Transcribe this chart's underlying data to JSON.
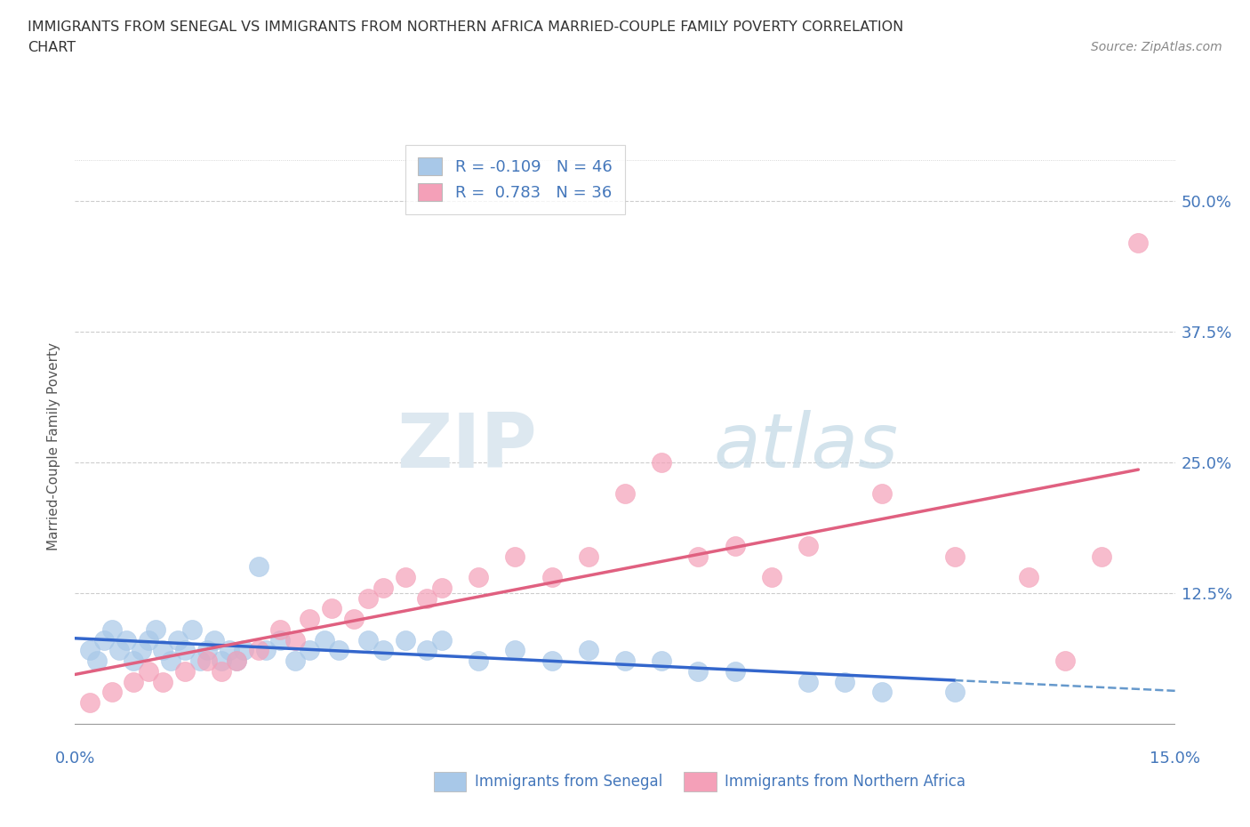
{
  "title_line1": "IMMIGRANTS FROM SENEGAL VS IMMIGRANTS FROM NORTHERN AFRICA MARRIED-COUPLE FAMILY POVERTY CORRELATION",
  "title_line2": "CHART",
  "source_text": "Source: ZipAtlas.com",
  "ylabel": "Married-Couple Family Poverty",
  "legend_label1": "Immigrants from Senegal",
  "legend_label2": "Immigrants from Northern Africa",
  "r1": -0.109,
  "n1": 46,
  "r2": 0.783,
  "n2": 36,
  "color1": "#a8c8e8",
  "color2": "#f4a0b8",
  "line1_solid_color": "#3366cc",
  "line1_dash_color": "#6699cc",
  "line2_color": "#e06080",
  "watermark_zip": "ZIP",
  "watermark_atlas": "atlas",
  "xlim": [
    0.0,
    0.15
  ],
  "ylim": [
    -0.02,
    0.55
  ],
  "xticks": [
    0.0,
    0.025,
    0.05,
    0.075,
    0.1,
    0.125,
    0.15
  ],
  "ytick_vals": [
    0.0,
    0.125,
    0.25,
    0.375,
    0.5
  ],
  "ytick_labels": [
    "",
    "12.5%",
    "25.0%",
    "37.5%",
    "50.0%"
  ],
  "senegal_x": [
    0.002,
    0.003,
    0.004,
    0.005,
    0.006,
    0.007,
    0.008,
    0.009,
    0.01,
    0.011,
    0.012,
    0.013,
    0.014,
    0.015,
    0.016,
    0.017,
    0.018,
    0.019,
    0.02,
    0.021,
    0.022,
    0.023,
    0.025,
    0.026,
    0.028,
    0.03,
    0.032,
    0.034,
    0.036,
    0.04,
    0.042,
    0.045,
    0.048,
    0.05,
    0.055,
    0.06,
    0.065,
    0.07,
    0.075,
    0.08,
    0.085,
    0.09,
    0.1,
    0.105,
    0.11,
    0.12
  ],
  "senegal_y": [
    0.07,
    0.06,
    0.08,
    0.09,
    0.07,
    0.08,
    0.06,
    0.07,
    0.08,
    0.09,
    0.07,
    0.06,
    0.08,
    0.07,
    0.09,
    0.06,
    0.07,
    0.08,
    0.06,
    0.07,
    0.06,
    0.07,
    0.15,
    0.07,
    0.08,
    0.06,
    0.07,
    0.08,
    0.07,
    0.08,
    0.07,
    0.08,
    0.07,
    0.08,
    0.06,
    0.07,
    0.06,
    0.07,
    0.06,
    0.06,
    0.05,
    0.05,
    0.04,
    0.04,
    0.03,
    0.03
  ],
  "northafrica_x": [
    0.002,
    0.005,
    0.008,
    0.01,
    0.012,
    0.015,
    0.018,
    0.02,
    0.022,
    0.025,
    0.028,
    0.03,
    0.032,
    0.035,
    0.038,
    0.04,
    0.042,
    0.045,
    0.048,
    0.05,
    0.055,
    0.06,
    0.065,
    0.07,
    0.075,
    0.08,
    0.085,
    0.09,
    0.095,
    0.1,
    0.11,
    0.12,
    0.13,
    0.135,
    0.14,
    0.145
  ],
  "northafrica_y": [
    0.02,
    0.03,
    0.04,
    0.05,
    0.04,
    0.05,
    0.06,
    0.05,
    0.06,
    0.07,
    0.09,
    0.08,
    0.1,
    0.11,
    0.1,
    0.12,
    0.13,
    0.14,
    0.12,
    0.13,
    0.14,
    0.16,
    0.14,
    0.16,
    0.22,
    0.25,
    0.16,
    0.17,
    0.14,
    0.17,
    0.22,
    0.16,
    0.14,
    0.06,
    0.16,
    0.46
  ],
  "plot_bg": "#ffffff",
  "grid_color": "#cccccc",
  "title_color": "#333333",
  "tick_color": "#4477bb",
  "ylabel_color": "#555555"
}
